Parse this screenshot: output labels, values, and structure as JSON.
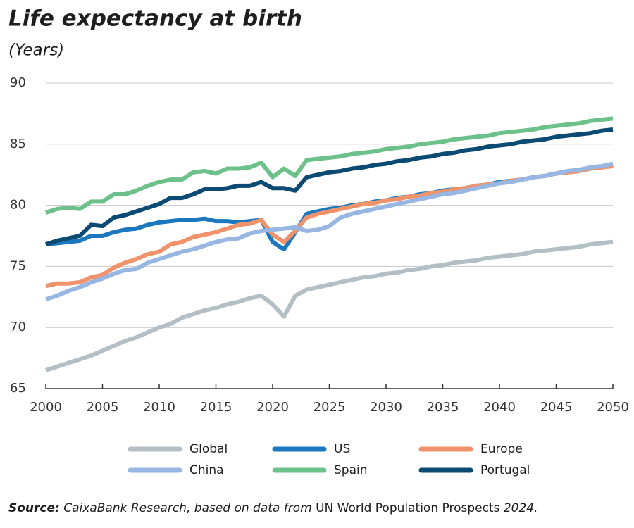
{
  "chart_data": {
    "type": "line",
    "title": "Life expectancy at birth",
    "subtitle": "(Years)",
    "x": [
      2000,
      2001,
      2002,
      2003,
      2004,
      2005,
      2006,
      2007,
      2008,
      2009,
      2010,
      2011,
      2012,
      2013,
      2014,
      2015,
      2016,
      2017,
      2018,
      2019,
      2020,
      2021,
      2022,
      2023,
      2024,
      2025,
      2026,
      2027,
      2028,
      2029,
      2030,
      2031,
      2032,
      2033,
      2034,
      2035,
      2036,
      2037,
      2038,
      2039,
      2040,
      2041,
      2042,
      2043,
      2044,
      2045,
      2046,
      2047,
      2048,
      2049,
      2050
    ],
    "xlim": [
      2000,
      2050
    ],
    "xticks": [
      2000,
      2005,
      2010,
      2015,
      2020,
      2025,
      2030,
      2035,
      2040,
      2045,
      2050
    ],
    "ylim": [
      65,
      90
    ],
    "yticks": [
      65,
      70,
      75,
      80,
      85,
      90
    ],
    "grid": true,
    "series": [
      {
        "name": "Global",
        "color": "#b3bfc4",
        "values": [
          66.5,
          66.8,
          67.1,
          67.4,
          67.7,
          68.1,
          68.5,
          68.9,
          69.2,
          69.6,
          70.0,
          70.3,
          70.8,
          71.1,
          71.4,
          71.6,
          71.9,
          72.1,
          72.4,
          72.6,
          71.9,
          70.9,
          72.6,
          73.1,
          73.3,
          73.5,
          73.7,
          73.9,
          74.1,
          74.2,
          74.4,
          74.5,
          74.7,
          74.8,
          75.0,
          75.1,
          75.3,
          75.4,
          75.5,
          75.7,
          75.8,
          75.9,
          76.0,
          76.2,
          76.3,
          76.4,
          76.5,
          76.6,
          76.8,
          76.9,
          77.0
        ]
      },
      {
        "name": "US",
        "color": "#1b78be",
        "values": [
          76.8,
          76.9,
          77.0,
          77.1,
          77.5,
          77.5,
          77.8,
          78.0,
          78.1,
          78.4,
          78.6,
          78.7,
          78.8,
          78.8,
          78.9,
          78.7,
          78.7,
          78.6,
          78.7,
          78.8,
          77.0,
          76.4,
          77.8,
          79.3,
          79.5,
          79.7,
          79.8,
          80.0,
          80.1,
          80.3,
          80.4,
          80.6,
          80.7,
          80.9,
          81.0,
          81.2,
          81.3,
          81.4,
          81.6,
          81.7,
          81.9,
          82.0,
          82.1,
          82.3,
          82.4,
          82.6,
          82.7,
          82.8,
          83.0,
          83.1,
          83.3
        ]
      },
      {
        "name": "Europe",
        "color": "#f0936a",
        "values": [
          73.4,
          73.6,
          73.6,
          73.7,
          74.1,
          74.3,
          74.9,
          75.3,
          75.6,
          76.0,
          76.2,
          76.8,
          77.0,
          77.4,
          77.6,
          77.8,
          78.1,
          78.4,
          78.5,
          78.8,
          77.6,
          77.0,
          77.9,
          79.0,
          79.3,
          79.5,
          79.7,
          79.9,
          80.1,
          80.2,
          80.4,
          80.5,
          80.7,
          80.8,
          81.0,
          81.1,
          81.3,
          81.4,
          81.6,
          81.7,
          81.8,
          82.0,
          82.1,
          82.3,
          82.4,
          82.6,
          82.7,
          82.8,
          83.0,
          83.1,
          83.2
        ]
      },
      {
        "name": "China",
        "color": "#97b6e2",
        "values": [
          72.3,
          72.6,
          73.0,
          73.3,
          73.7,
          74.0,
          74.4,
          74.7,
          74.8,
          75.3,
          75.6,
          75.9,
          76.2,
          76.4,
          76.7,
          77.0,
          77.2,
          77.3,
          77.7,
          77.9,
          78.0,
          78.1,
          78.2,
          77.9,
          78.0,
          78.3,
          79.0,
          79.3,
          79.5,
          79.7,
          79.9,
          80.1,
          80.3,
          80.5,
          80.7,
          80.9,
          81.0,
          81.2,
          81.4,
          81.6,
          81.8,
          81.9,
          82.1,
          82.3,
          82.4,
          82.6,
          82.8,
          82.9,
          83.1,
          83.2,
          83.4
        ]
      },
      {
        "name": "Spain",
        "color": "#6cc08a",
        "values": [
          79.4,
          79.7,
          79.8,
          79.7,
          80.3,
          80.3,
          80.9,
          80.9,
          81.2,
          81.6,
          81.9,
          82.1,
          82.1,
          82.7,
          82.8,
          82.6,
          83.0,
          83.0,
          83.1,
          83.5,
          82.3,
          83.0,
          82.4,
          83.7,
          83.8,
          83.9,
          84.0,
          84.2,
          84.3,
          84.4,
          84.6,
          84.7,
          84.8,
          85.0,
          85.1,
          85.2,
          85.4,
          85.5,
          85.6,
          85.7,
          85.9,
          86.0,
          86.1,
          86.2,
          86.4,
          86.5,
          86.6,
          86.7,
          86.9,
          87.0,
          87.1
        ]
      },
      {
        "name": "Portugal",
        "color": "#0a4a73",
        "values": [
          76.8,
          77.1,
          77.3,
          77.5,
          78.4,
          78.3,
          79.0,
          79.2,
          79.5,
          79.8,
          80.1,
          80.6,
          80.6,
          80.9,
          81.3,
          81.3,
          81.4,
          81.6,
          81.6,
          81.9,
          81.4,
          81.4,
          81.2,
          82.3,
          82.5,
          82.7,
          82.8,
          83.0,
          83.1,
          83.3,
          83.4,
          83.6,
          83.7,
          83.9,
          84.0,
          84.2,
          84.3,
          84.5,
          84.6,
          84.8,
          84.9,
          85.0,
          85.2,
          85.3,
          85.4,
          85.6,
          85.7,
          85.8,
          85.9,
          86.1,
          86.2
        ]
      }
    ],
    "source": [
      "Source:",
      "CaixaBank Research, based on data from",
      "UN World Population Prospects",
      "2024."
    ]
  }
}
